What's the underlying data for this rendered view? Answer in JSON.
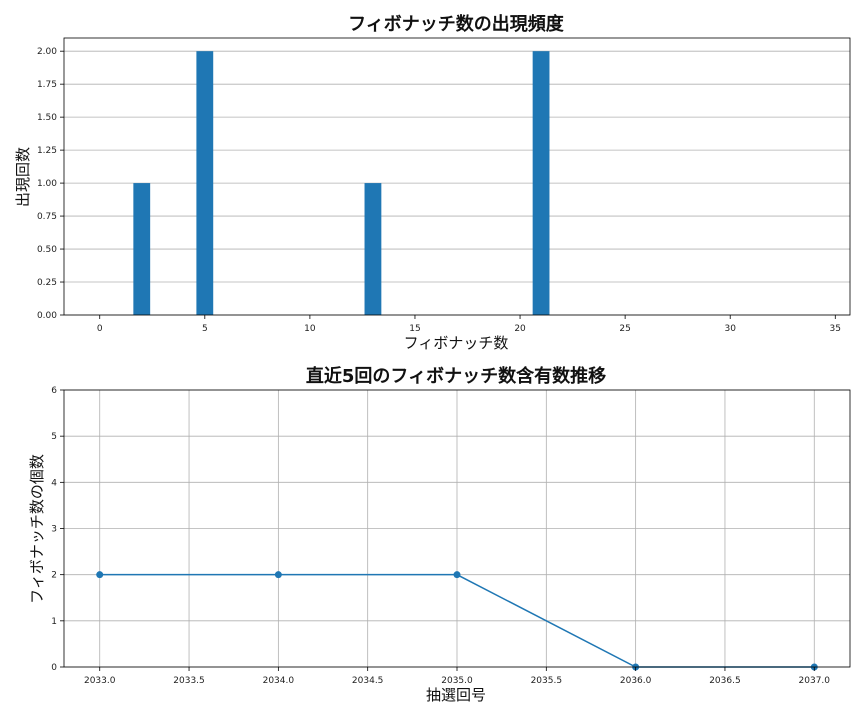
{
  "chart_data": [
    {
      "type": "bar",
      "title": "フィボナッチ数の出現頻度",
      "xlabel": "フィボナッチ数",
      "ylabel": "出現回数",
      "xlim": [
        -1.7,
        35.7
      ],
      "ylim": [
        0,
        2.1
      ],
      "xticks": [
        0,
        5,
        10,
        15,
        20,
        25,
        30,
        35
      ],
      "xtick_labels": [
        "0",
        "5",
        "10",
        "15",
        "20",
        "25",
        "30",
        "35"
      ],
      "yticks": [
        0,
        0.25,
        0.5,
        0.75,
        1.0,
        1.25,
        1.5,
        1.75,
        2.0
      ],
      "ytick_labels": [
        "0.00",
        "0.25",
        "0.50",
        "0.75",
        "1.00",
        "1.25",
        "1.50",
        "1.75",
        "2.00"
      ],
      "bar_width": 0.8,
      "x": [
        2,
        5,
        13,
        21
      ],
      "values": [
        1,
        2,
        1,
        2
      ],
      "color": "#1f77b4",
      "grid": "y"
    },
    {
      "type": "line",
      "title": "直近5回のフィボナッチ数含有数推移",
      "xlabel": "抽選回号",
      "ylabel": "フィボナッチ数の個数",
      "xlim": [
        2032.8,
        2037.2
      ],
      "ylim": [
        0,
        6
      ],
      "xticks": [
        2033.0,
        2033.5,
        2034.0,
        2034.5,
        2035.0,
        2035.5,
        2036.0,
        2036.5,
        2037.0
      ],
      "xtick_labels": [
        "2033.0",
        "2033.5",
        "2034.0",
        "2034.5",
        "2035.0",
        "2035.5",
        "2036.0",
        "2036.5",
        "2037.0"
      ],
      "yticks": [
        0,
        1,
        2,
        3,
        4,
        5,
        6
      ],
      "ytick_labels": [
        "0",
        "1",
        "2",
        "3",
        "4",
        "5",
        "6"
      ],
      "x": [
        2033,
        2034,
        2035,
        2036,
        2037
      ],
      "values": [
        2,
        2,
        2,
        0,
        0
      ],
      "color": "#1f77b4",
      "grid": "both",
      "marker": "circle"
    }
  ]
}
